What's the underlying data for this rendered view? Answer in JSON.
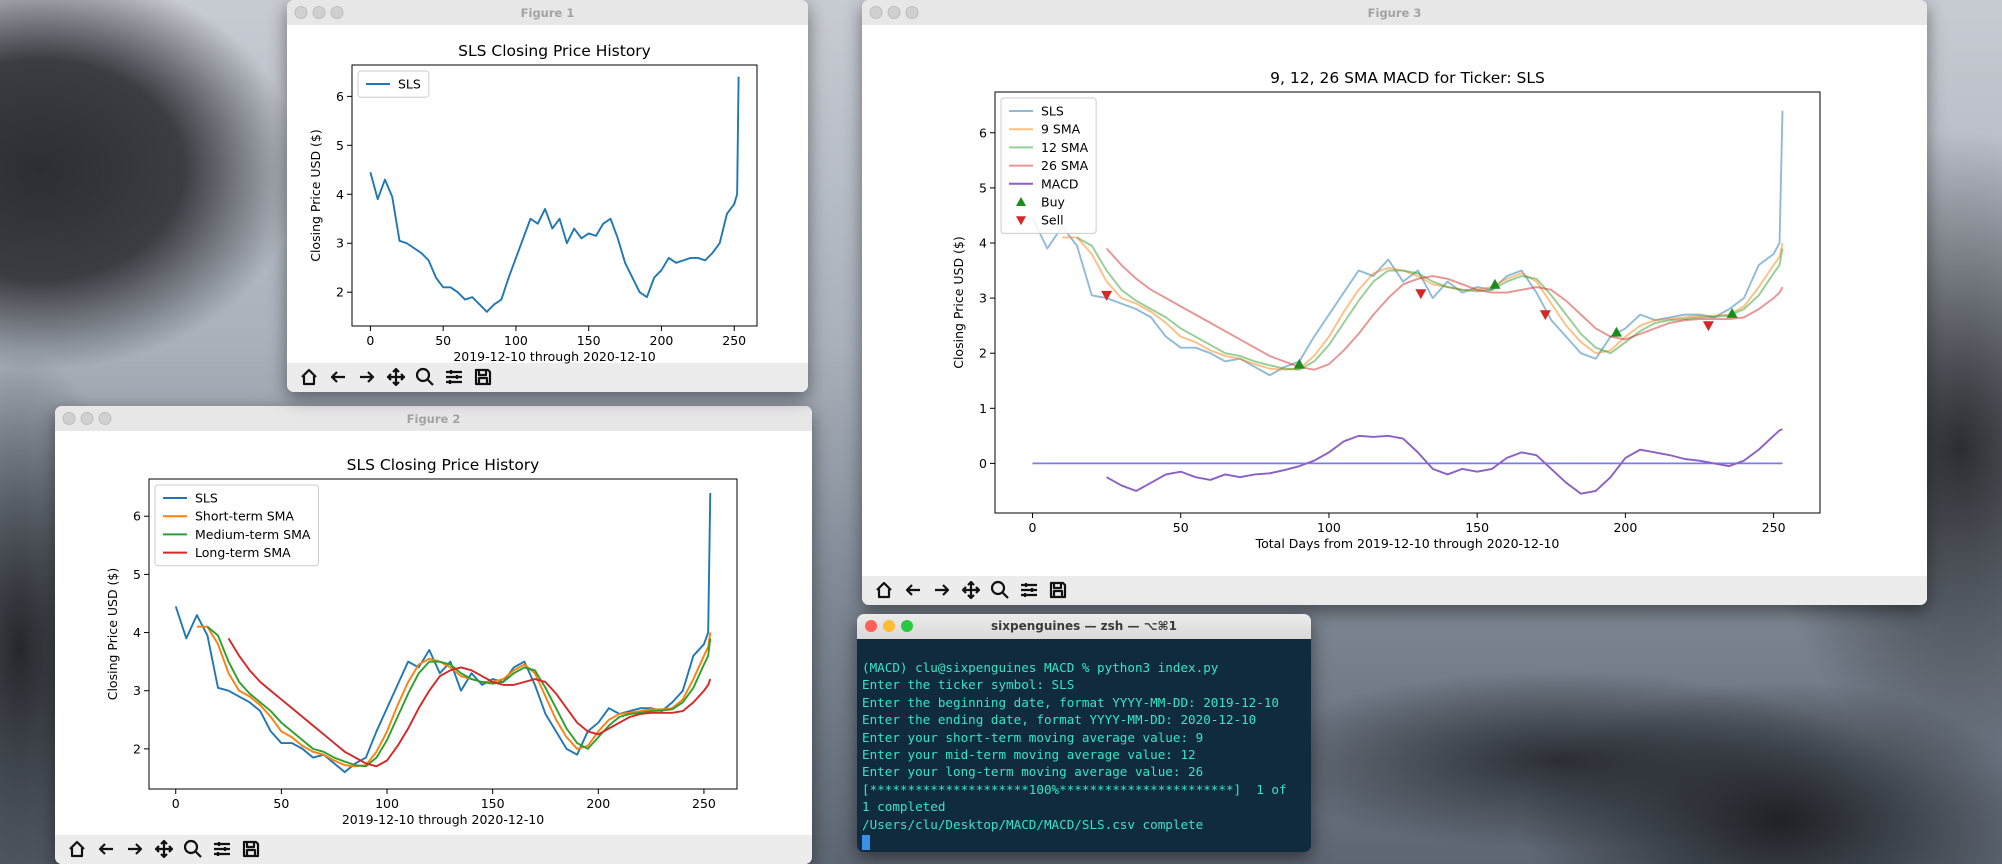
{
  "windows": [
    {
      "title": "Figure 1"
    },
    {
      "title": "Figure 2"
    },
    {
      "title": "Figure 3"
    }
  ],
  "chart_data": [
    {
      "type": "line",
      "title": "SLS Closing Price History",
      "x_label": "2019-12-10 through 2020-12-10",
      "y_label": "Closing Price USD ($)",
      "x": [
        0,
        5,
        10,
        15,
        20,
        25,
        30,
        35,
        40,
        45,
        50,
        55,
        60,
        65,
        70,
        75,
        80,
        85,
        90,
        95,
        100,
        105,
        110,
        115,
        120,
        125,
        130,
        135,
        140,
        145,
        150,
        155,
        160,
        165,
        170,
        175,
        180,
        185,
        190,
        195,
        200,
        205,
        210,
        215,
        220,
        225,
        230,
        235,
        240,
        245,
        250,
        252,
        253
      ],
      "series": [
        {
          "name": "SLS",
          "color": "#1f77b4",
          "values": [
            4.45,
            3.9,
            4.3,
            3.95,
            3.05,
            3.0,
            2.9,
            2.8,
            2.65,
            2.3,
            2.1,
            2.1,
            2.0,
            1.85,
            1.9,
            1.75,
            1.6,
            1.75,
            1.85,
            2.3,
            2.7,
            3.1,
            3.5,
            3.4,
            3.7,
            3.3,
            3.5,
            3.0,
            3.3,
            3.1,
            3.2,
            3.15,
            3.4,
            3.5,
            3.1,
            2.6,
            2.3,
            2.0,
            1.9,
            2.3,
            2.45,
            2.7,
            2.6,
            2.65,
            2.7,
            2.7,
            2.65,
            2.8,
            3.0,
            3.6,
            3.8,
            4.0,
            6.4
          ]
        }
      ],
      "xlim": [
        -12.65,
        265.65
      ],
      "ylim": [
        1.31,
        6.64
      ],
      "xticks": [
        0,
        50,
        100,
        150,
        200,
        250
      ],
      "yticks": [
        2,
        3,
        4,
        5,
        6
      ],
      "legend": "upper left"
    },
    {
      "type": "line",
      "title": "SLS Closing Price History",
      "x_label": "2019-12-10 through 2020-12-10",
      "y_label": "Closing Price USD ($)",
      "x": [
        0,
        5,
        10,
        15,
        20,
        25,
        30,
        35,
        40,
        45,
        50,
        55,
        60,
        65,
        70,
        75,
        80,
        85,
        90,
        95,
        100,
        105,
        110,
        115,
        120,
        125,
        130,
        135,
        140,
        145,
        150,
        155,
        160,
        165,
        170,
        175,
        180,
        185,
        190,
        195,
        200,
        205,
        210,
        215,
        220,
        225,
        230,
        235,
        240,
        245,
        250,
        252,
        253
      ],
      "series": [
        {
          "name": "SLS",
          "color": "#1f77b4",
          "values": [
            4.45,
            3.9,
            4.3,
            3.95,
            3.05,
            3.0,
            2.9,
            2.8,
            2.65,
            2.3,
            2.1,
            2.1,
            2.0,
            1.85,
            1.9,
            1.75,
            1.6,
            1.75,
            1.85,
            2.3,
            2.7,
            3.1,
            3.5,
            3.4,
            3.7,
            3.3,
            3.5,
            3.0,
            3.3,
            3.1,
            3.2,
            3.15,
            3.4,
            3.5,
            3.1,
            2.6,
            2.3,
            2.0,
            1.9,
            2.3,
            2.45,
            2.7,
            2.6,
            2.65,
            2.7,
            2.7,
            2.65,
            2.8,
            3.0,
            3.6,
            3.8,
            4.0,
            6.4
          ]
        },
        {
          "name": "Short-term SMA",
          "color": "#ff7f0e",
          "values": [
            null,
            null,
            4.1,
            4.1,
            3.8,
            3.3,
            3.0,
            2.9,
            2.75,
            2.55,
            2.3,
            2.2,
            2.05,
            1.95,
            1.9,
            1.8,
            1.72,
            1.7,
            1.72,
            1.95,
            2.3,
            2.75,
            3.15,
            3.45,
            3.55,
            3.5,
            3.4,
            3.25,
            3.2,
            3.15,
            3.15,
            3.2,
            3.35,
            3.45,
            3.3,
            2.9,
            2.5,
            2.2,
            2.0,
            2.05,
            2.3,
            2.5,
            2.6,
            2.62,
            2.65,
            2.68,
            2.68,
            2.7,
            2.85,
            3.2,
            3.6,
            3.75,
            4.0
          ]
        },
        {
          "name": "Medium-term SMA",
          "color": "#2ca02c",
          "values": [
            null,
            null,
            null,
            4.1,
            3.95,
            3.5,
            3.15,
            2.95,
            2.8,
            2.65,
            2.45,
            2.3,
            2.15,
            2.0,
            1.95,
            1.85,
            1.78,
            1.72,
            1.7,
            1.85,
            2.15,
            2.55,
            2.95,
            3.3,
            3.5,
            3.5,
            3.45,
            3.3,
            3.2,
            3.15,
            3.12,
            3.15,
            3.3,
            3.4,
            3.35,
            3.05,
            2.7,
            2.35,
            2.1,
            2.0,
            2.2,
            2.4,
            2.55,
            2.6,
            2.62,
            2.65,
            2.66,
            2.68,
            2.8,
            3.05,
            3.45,
            3.6,
            3.9
          ]
        },
        {
          "name": "Long-term SMA",
          "color": "#d62728",
          "values": [
            null,
            null,
            null,
            null,
            null,
            3.9,
            3.6,
            3.35,
            3.15,
            3.0,
            2.85,
            2.7,
            2.55,
            2.4,
            2.25,
            2.1,
            1.95,
            1.85,
            1.75,
            1.7,
            1.8,
            2.05,
            2.35,
            2.7,
            3.0,
            3.25,
            3.35,
            3.4,
            3.35,
            3.25,
            3.15,
            3.1,
            3.1,
            3.15,
            3.2,
            3.15,
            2.95,
            2.7,
            2.45,
            2.3,
            2.25,
            2.35,
            2.45,
            2.55,
            2.6,
            2.62,
            2.62,
            2.62,
            2.65,
            2.8,
            3.0,
            3.1,
            3.2
          ]
        }
      ],
      "xlim": [
        -12.65,
        265.65
      ],
      "ylim": [
        1.31,
        6.64
      ],
      "xticks": [
        0,
        50,
        100,
        150,
        200,
        250
      ],
      "yticks": [
        2,
        3,
        4,
        5,
        6
      ],
      "legend": "upper left"
    },
    {
      "type": "line",
      "title": "9, 12, 26 SMA MACD for Ticker: SLS",
      "x_label": "Total Days from 2019-12-10 through 2020-12-10",
      "y_label": "Closing Price USD ($)",
      "x": [
        0,
        5,
        10,
        15,
        20,
        25,
        30,
        35,
        40,
        45,
        50,
        55,
        60,
        65,
        70,
        75,
        80,
        85,
        90,
        95,
        100,
        105,
        110,
        115,
        120,
        125,
        130,
        135,
        140,
        145,
        150,
        155,
        160,
        165,
        170,
        175,
        180,
        185,
        190,
        195,
        200,
        205,
        210,
        215,
        220,
        225,
        230,
        235,
        240,
        245,
        250,
        252,
        253
      ],
      "series": [
        {
          "name": "SLS",
          "color": "#1f77b4",
          "alpha": 0.5,
          "values": [
            4.45,
            3.9,
            4.3,
            3.95,
            3.05,
            3.0,
            2.9,
            2.8,
            2.65,
            2.3,
            2.1,
            2.1,
            2.0,
            1.85,
            1.9,
            1.75,
            1.6,
            1.75,
            1.85,
            2.3,
            2.7,
            3.1,
            3.5,
            3.4,
            3.7,
            3.3,
            3.5,
            3.0,
            3.3,
            3.1,
            3.2,
            3.15,
            3.4,
            3.5,
            3.1,
            2.6,
            2.3,
            2.0,
            1.9,
            2.3,
            2.45,
            2.7,
            2.6,
            2.65,
            2.7,
            2.7,
            2.65,
            2.8,
            3.0,
            3.6,
            3.8,
            4.0,
            6.4
          ]
        },
        {
          "name": "9 SMA",
          "color": "#ff7f0e",
          "alpha": 0.5,
          "values": [
            null,
            null,
            4.1,
            4.1,
            3.8,
            3.3,
            3.0,
            2.9,
            2.75,
            2.55,
            2.3,
            2.2,
            2.05,
            1.95,
            1.9,
            1.8,
            1.72,
            1.7,
            1.72,
            1.95,
            2.3,
            2.75,
            3.15,
            3.45,
            3.55,
            3.5,
            3.4,
            3.25,
            3.2,
            3.15,
            3.15,
            3.2,
            3.35,
            3.45,
            3.3,
            2.9,
            2.5,
            2.2,
            2.0,
            2.05,
            2.3,
            2.5,
            2.6,
            2.62,
            2.65,
            2.68,
            2.68,
            2.7,
            2.85,
            3.2,
            3.6,
            3.75,
            4.0
          ]
        },
        {
          "name": "12 SMA",
          "color": "#2ca02c",
          "alpha": 0.5,
          "values": [
            null,
            null,
            null,
            4.1,
            3.95,
            3.5,
            3.15,
            2.95,
            2.8,
            2.65,
            2.45,
            2.3,
            2.15,
            2.0,
            1.95,
            1.85,
            1.78,
            1.72,
            1.7,
            1.85,
            2.15,
            2.55,
            2.95,
            3.3,
            3.5,
            3.5,
            3.45,
            3.3,
            3.2,
            3.15,
            3.12,
            3.15,
            3.3,
            3.4,
            3.35,
            3.05,
            2.7,
            2.35,
            2.1,
            2.0,
            2.2,
            2.4,
            2.55,
            2.6,
            2.62,
            2.65,
            2.66,
            2.68,
            2.8,
            3.05,
            3.45,
            3.6,
            3.9
          ]
        },
        {
          "name": "26 SMA",
          "color": "#d62728",
          "alpha": 0.5,
          "values": [
            null,
            null,
            null,
            null,
            null,
            3.9,
            3.6,
            3.35,
            3.15,
            3.0,
            2.85,
            2.7,
            2.55,
            2.4,
            2.25,
            2.1,
            1.95,
            1.85,
            1.75,
            1.7,
            1.8,
            2.05,
            2.35,
            2.7,
            3.0,
            3.25,
            3.35,
            3.4,
            3.35,
            3.25,
            3.15,
            3.1,
            3.1,
            3.15,
            3.2,
            3.15,
            2.95,
            2.7,
            2.45,
            2.3,
            2.25,
            2.35,
            2.45,
            2.55,
            2.6,
            2.62,
            2.62,
            2.62,
            2.65,
            2.8,
            3.0,
            3.1,
            3.2
          ]
        },
        {
          "name": "MACD",
          "color": "#8c5fc6",
          "values": [
            null,
            null,
            null,
            null,
            null,
            -0.25,
            -0.4,
            -0.5,
            -0.35,
            -0.2,
            -0.15,
            -0.25,
            -0.3,
            -0.2,
            -0.25,
            -0.2,
            -0.18,
            -0.12,
            -0.05,
            0.05,
            0.2,
            0.4,
            0.5,
            0.48,
            0.5,
            0.45,
            0.2,
            -0.1,
            -0.2,
            -0.1,
            -0.15,
            -0.1,
            0.1,
            0.2,
            0.15,
            -0.1,
            -0.35,
            -0.55,
            -0.5,
            -0.25,
            0.1,
            0.25,
            0.2,
            0.15,
            0.08,
            0.05,
            0.0,
            -0.05,
            0.05,
            0.25,
            0.5,
            0.6,
            0.62
          ]
        },
        {
          "name": "Buy",
          "color": "#1a8c1a",
          "marker": "^",
          "x": [
            90,
            156,
            197,
            236
          ],
          "values": [
            1.8,
            3.25,
            2.38,
            2.72
          ]
        },
        {
          "name": "Sell",
          "color": "#d62728",
          "marker": "v",
          "x": [
            25,
            131,
            173,
            228
          ],
          "values": [
            3.05,
            3.08,
            2.7,
            2.5
          ]
        }
      ],
      "hlines": [
        {
          "y": 0,
          "xmin": 0,
          "xmax": 253,
          "color": "#7b7bf0"
        }
      ],
      "xlim": [
        -12.65,
        265.65
      ],
      "ylim": [
        -0.9,
        6.74
      ],
      "xticks": [
        0,
        50,
        100,
        150,
        200,
        250
      ],
      "yticks": [
        0,
        1,
        2,
        3,
        4,
        5,
        6
      ],
      "legend": "upper left"
    }
  ],
  "terminal": {
    "title": "sixpenguines — zsh — ⌥⌘1",
    "lines": [
      "(MACD) clu@sixpenguines MACD % python3 index.py",
      "Enter the ticker symbol: SLS",
      "Enter the beginning date, format YYYY-MM-DD: 2019-12-10",
      "Enter the ending date, format YYYY-MM-DD: 2020-12-10",
      "Enter your short-term moving average value: 9",
      "Enter your mid-term moving average value: 12",
      "Enter your long-term moving average value: 26",
      "[*********************100%***********************]  1 of",
      "1 completed",
      "/Users/clu/Desktop/MACD/MACD/SLS.csv complete"
    ]
  }
}
